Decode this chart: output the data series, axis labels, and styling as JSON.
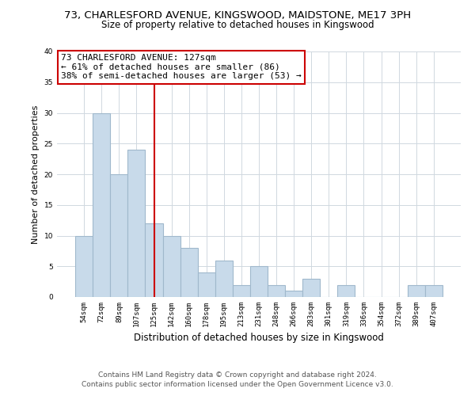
{
  "title1": "73, CHARLESFORD AVENUE, KINGSWOOD, MAIDSTONE, ME17 3PH",
  "title2": "Size of property relative to detached houses in Kingswood",
  "xlabel": "Distribution of detached houses by size in Kingswood",
  "ylabel": "Number of detached properties",
  "categories": [
    "54sqm",
    "72sqm",
    "89sqm",
    "107sqm",
    "125sqm",
    "142sqm",
    "160sqm",
    "178sqm",
    "195sqm",
    "213sqm",
    "231sqm",
    "248sqm",
    "266sqm",
    "283sqm",
    "301sqm",
    "319sqm",
    "336sqm",
    "354sqm",
    "372sqm",
    "389sqm",
    "407sqm"
  ],
  "values": [
    10,
    30,
    20,
    24,
    12,
    10,
    8,
    4,
    6,
    2,
    5,
    2,
    1,
    3,
    0,
    2,
    0,
    0,
    0,
    2,
    2
  ],
  "bar_color": "#c8daea",
  "bar_edge_color": "#a0b8cc",
  "highlight_index": 4,
  "highlight_line_color": "#cc0000",
  "ylim": [
    0,
    40
  ],
  "yticks": [
    0,
    5,
    10,
    15,
    20,
    25,
    30,
    35,
    40
  ],
  "annotation_title": "73 CHARLESFORD AVENUE: 127sqm",
  "annotation_line1": "← 61% of detached houses are smaller (86)",
  "annotation_line2": "38% of semi-detached houses are larger (53) →",
  "annotation_box_color": "#ffffff",
  "annotation_box_edge": "#cc0000",
  "footer1": "Contains HM Land Registry data © Crown copyright and database right 2024.",
  "footer2": "Contains public sector information licensed under the Open Government Licence v3.0.",
  "bg_color": "#ffffff",
  "grid_color": "#d0d8e0"
}
